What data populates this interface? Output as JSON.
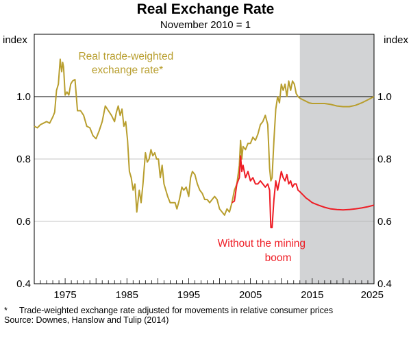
{
  "header": {
    "title": "Real Exchange Rate",
    "subtitle": "November 2010 = 1"
  },
  "chart_data": {
    "type": "line",
    "title": "Real Exchange Rate",
    "subtitle": "November 2010 = 1",
    "ylabel_left": "index",
    "ylabel_right": "index",
    "xlim": [
      1970,
      2025
    ],
    "ylim": [
      0.4,
      1.2
    ],
    "x_ticks": [
      "1975",
      "1985",
      "1995",
      "2005",
      "2015",
      "2025"
    ],
    "y_ticks": [
      "0.4",
      "0.6",
      "0.8",
      "1.0"
    ],
    "reference_line": 1.0,
    "shaded_region": [
      2013.0,
      2025
    ],
    "colors": {
      "twi": "#b89e2e",
      "mining": "#ee1c24",
      "shade": "#d2d3d5"
    },
    "series": [
      {
        "name": "Real trade-weighted exchange rate*",
        "label_lines": [
          "Real trade-weighted",
          "exchange rate*"
        ],
        "x": [
          1970.0,
          1970.5,
          1971.0,
          1971.5,
          1972.0,
          1972.5,
          1973.0,
          1973.3,
          1973.6,
          1973.9,
          1974.2,
          1974.3,
          1974.45,
          1974.6,
          1974.75,
          1975.0,
          1975.3,
          1975.6,
          1975.9,
          1976.2,
          1976.6,
          1977.0,
          1977.5,
          1978.0,
          1978.5,
          1979.0,
          1979.5,
          1980.0,
          1980.5,
          1981.0,
          1981.5,
          1982.0,
          1982.5,
          1983.0,
          1983.3,
          1983.6,
          1983.9,
          1984.2,
          1984.5,
          1984.8,
          1985.1,
          1985.4,
          1985.7,
          1986.0,
          1986.3,
          1986.6,
          1987.0,
          1987.3,
          1987.6,
          1988.0,
          1988.3,
          1988.6,
          1988.9,
          1989.2,
          1989.5,
          1989.8,
          1990.1,
          1990.4,
          1990.7,
          1991.0,
          1991.3,
          1991.6,
          1992.0,
          1992.4,
          1992.8,
          1993.1,
          1993.5,
          1993.9,
          1994.2,
          1994.6,
          1995.0,
          1995.3,
          1995.6,
          1996.0,
          1996.4,
          1996.8,
          1997.2,
          1997.6,
          1998.0,
          1998.4,
          1998.8,
          1999.2,
          1999.6,
          2000.0,
          2000.4,
          2000.8,
          2001.2,
          2001.6,
          2002.0,
          2002.4,
          2002.8,
          2003.2,
          2003.4,
          2003.6,
          2003.8,
          2004.2,
          2004.6,
          2005.0,
          2005.4,
          2005.8,
          2006.2,
          2006.6,
          2007.0,
          2007.4,
          2007.8,
          2008.1,
          2008.3,
          2008.5,
          2008.8,
          2009.1,
          2009.4,
          2009.7,
          2010.0,
          2010.3,
          2010.6,
          2010.9,
          2011.2,
          2011.5,
          2011.8,
          2012.1,
          2012.4,
          2012.7,
          2013.0,
          2013.5,
          2014.0,
          2014.5,
          2015.0,
          2016.0,
          2017.0,
          2018.0,
          2019.0,
          2020.0,
          2021.0,
          2022.0,
          2023.0,
          2024.0,
          2025.0
        ],
        "values": [
          0.905,
          0.9,
          0.91,
          0.915,
          0.92,
          0.915,
          0.935,
          0.95,
          1.02,
          1.04,
          1.12,
          1.1,
          1.08,
          1.11,
          1.095,
          1.005,
          1.015,
          1.005,
          1.04,
          1.05,
          1.055,
          0.955,
          0.955,
          0.94,
          0.905,
          0.9,
          0.875,
          0.865,
          0.89,
          0.92,
          0.97,
          0.955,
          0.94,
          0.92,
          0.95,
          0.97,
          0.94,
          0.96,
          0.905,
          0.92,
          0.86,
          0.76,
          0.74,
          0.7,
          0.72,
          0.63,
          0.7,
          0.66,
          0.72,
          0.82,
          0.79,
          0.8,
          0.83,
          0.81,
          0.82,
          0.8,
          0.8,
          0.74,
          0.78,
          0.72,
          0.7,
          0.68,
          0.66,
          0.66,
          0.66,
          0.64,
          0.67,
          0.71,
          0.7,
          0.71,
          0.68,
          0.74,
          0.76,
          0.75,
          0.72,
          0.7,
          0.69,
          0.67,
          0.67,
          0.66,
          0.67,
          0.68,
          0.67,
          0.64,
          0.63,
          0.62,
          0.64,
          0.63,
          0.66,
          0.7,
          0.72,
          0.78,
          0.86,
          0.8,
          0.84,
          0.83,
          0.85,
          0.85,
          0.87,
          0.86,
          0.88,
          0.91,
          0.92,
          0.94,
          0.91,
          0.77,
          0.73,
          0.74,
          0.86,
          0.96,
          1.0,
          0.98,
          1.04,
          1.02,
          1.04,
          1.0,
          1.05,
          1.02,
          1.05,
          1.04,
          1.01,
          1.0,
          0.995,
          0.99,
          0.985,
          0.98,
          0.978,
          0.978,
          0.978,
          0.975,
          0.97,
          0.968,
          0.968,
          0.972,
          0.98,
          0.99,
          1.0
        ]
      },
      {
        "name": "Without the mining boom",
        "label_lines": [
          "Without the mining",
          "boom"
        ],
        "x": [
          2002.0,
          2002.4,
          2002.8,
          2003.2,
          2003.4,
          2003.6,
          2003.8,
          2004.2,
          2004.6,
          2005.0,
          2005.4,
          2005.8,
          2006.2,
          2006.6,
          2007.0,
          2007.4,
          2007.8,
          2008.1,
          2008.3,
          2008.5,
          2008.8,
          2009.1,
          2009.4,
          2009.7,
          2010.0,
          2010.3,
          2010.6,
          2010.9,
          2011.2,
          2011.5,
          2011.8,
          2012.1,
          2012.4,
          2012.7,
          2013.0,
          2013.5,
          2014.0,
          2014.5,
          2015.0,
          2016.0,
          2017.0,
          2018.0,
          2019.0,
          2020.0,
          2021.0,
          2022.0,
          2023.0,
          2024.0,
          2025.0
        ],
        "values": [
          0.66,
          0.665,
          0.72,
          0.74,
          0.81,
          0.76,
          0.78,
          0.74,
          0.76,
          0.73,
          0.74,
          0.72,
          0.72,
          0.73,
          0.72,
          0.71,
          0.72,
          0.7,
          0.58,
          0.58,
          0.67,
          0.73,
          0.7,
          0.73,
          0.76,
          0.74,
          0.73,
          0.75,
          0.72,
          0.73,
          0.71,
          0.72,
          0.72,
          0.7,
          0.695,
          0.685,
          0.675,
          0.668,
          0.66,
          0.652,
          0.645,
          0.64,
          0.638,
          0.637,
          0.638,
          0.64,
          0.643,
          0.647,
          0.652
        ]
      }
    ]
  },
  "footnote": {
    "star": "*",
    "text": "Trade-weighted exchange rate adjusted for movements in relative consumer prices",
    "source": "Source: Downes, Hanslow and Tulip (2014)"
  }
}
